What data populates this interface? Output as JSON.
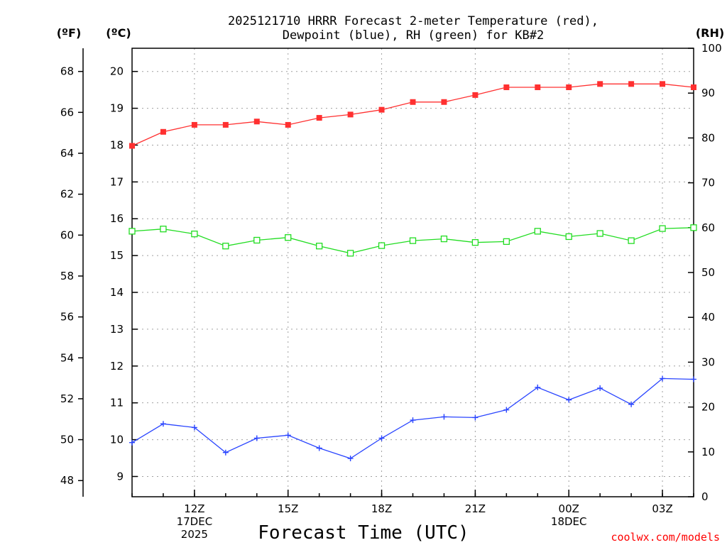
{
  "header": {
    "title_line1": "2025121710 HRRR Forecast 2-meter Temperature (red),",
    "title_line2": "Dewpoint (blue), RH (green) for KB#2",
    "unit_f": "(ºF)",
    "unit_c": "(ºC)",
    "unit_rh": "(RH)"
  },
  "footer": {
    "xlabel": "Forecast Time (UTC)",
    "credit": "coolwx.com/models"
  },
  "colors": {
    "temperature": "#ff3030",
    "dewpoint": "#2a45ff",
    "rh": "#22dd22",
    "axis": "#000000",
    "credit": "#ff0000"
  },
  "chart_data": {
    "type": "line",
    "title": "2025121710 HRRR Forecast 2-meter Temperature (red), Dewpoint (blue), RH (green) for KB#2",
    "xlabel": "Forecast Time (UTC)",
    "x_hours_from_10Z": [
      0,
      1,
      2,
      3,
      4,
      5,
      6,
      7,
      8,
      9,
      10,
      11,
      12,
      13,
      14,
      15,
      16,
      17,
      18
    ],
    "xlim": [
      0,
      18
    ],
    "x_ticks": [
      {
        "hour": 2,
        "lines": [
          "12Z",
          "17DEC",
          "2025"
        ]
      },
      {
        "hour": 5,
        "lines": [
          "15Z"
        ]
      },
      {
        "hour": 8,
        "lines": [
          "18Z"
        ]
      },
      {
        "hour": 11,
        "lines": [
          "21Z"
        ]
      },
      {
        "hour": 14,
        "lines": [
          "00Z",
          "18DEC"
        ]
      },
      {
        "hour": 17,
        "lines": [
          "03Z"
        ]
      }
    ],
    "y_celsius": {
      "label": "(ºC)",
      "ylim": [
        8.45,
        20.63
      ],
      "ticks": [
        9,
        10,
        11,
        12,
        13,
        14,
        15,
        16,
        17,
        18,
        19,
        20
      ]
    },
    "y_fahrenheit": {
      "label": "(ºF)",
      "ticks": [
        48,
        50,
        52,
        54,
        56,
        58,
        60,
        62,
        64,
        66,
        68
      ]
    },
    "y_rh": {
      "label": "(RH)",
      "ylim": [
        0,
        100
      ],
      "ticks": [
        0,
        10,
        20,
        30,
        40,
        50,
        60,
        70,
        80,
        90,
        100
      ]
    },
    "series": [
      {
        "name": "Temperature",
        "color": "red",
        "axis": "celsius",
        "marker": "filled-square",
        "values": [
          17.98,
          18.36,
          18.55,
          18.55,
          18.64,
          18.55,
          18.74,
          18.83,
          18.96,
          19.17,
          19.17,
          19.36,
          19.57,
          19.57,
          19.57,
          19.66,
          19.66,
          19.66,
          19.57
        ]
      },
      {
        "name": "Dewpoint",
        "color": "blue",
        "axis": "celsius",
        "marker": "plus",
        "values": [
          9.92,
          10.43,
          10.33,
          9.65,
          10.04,
          10.12,
          9.77,
          9.49,
          10.04,
          10.53,
          10.62,
          10.6,
          10.81,
          11.42,
          11.08,
          11.4,
          10.96,
          11.66,
          11.64
        ]
      },
      {
        "name": "RH",
        "color": "green",
        "axis": "rh",
        "marker": "open-square",
        "values": [
          59.2,
          59.7,
          58.6,
          55.9,
          57.2,
          57.8,
          55.9,
          54.3,
          56.0,
          57.1,
          57.5,
          56.7,
          56.9,
          59.2,
          58.0,
          58.7,
          57.1,
          59.8,
          60.0
        ]
      }
    ]
  }
}
